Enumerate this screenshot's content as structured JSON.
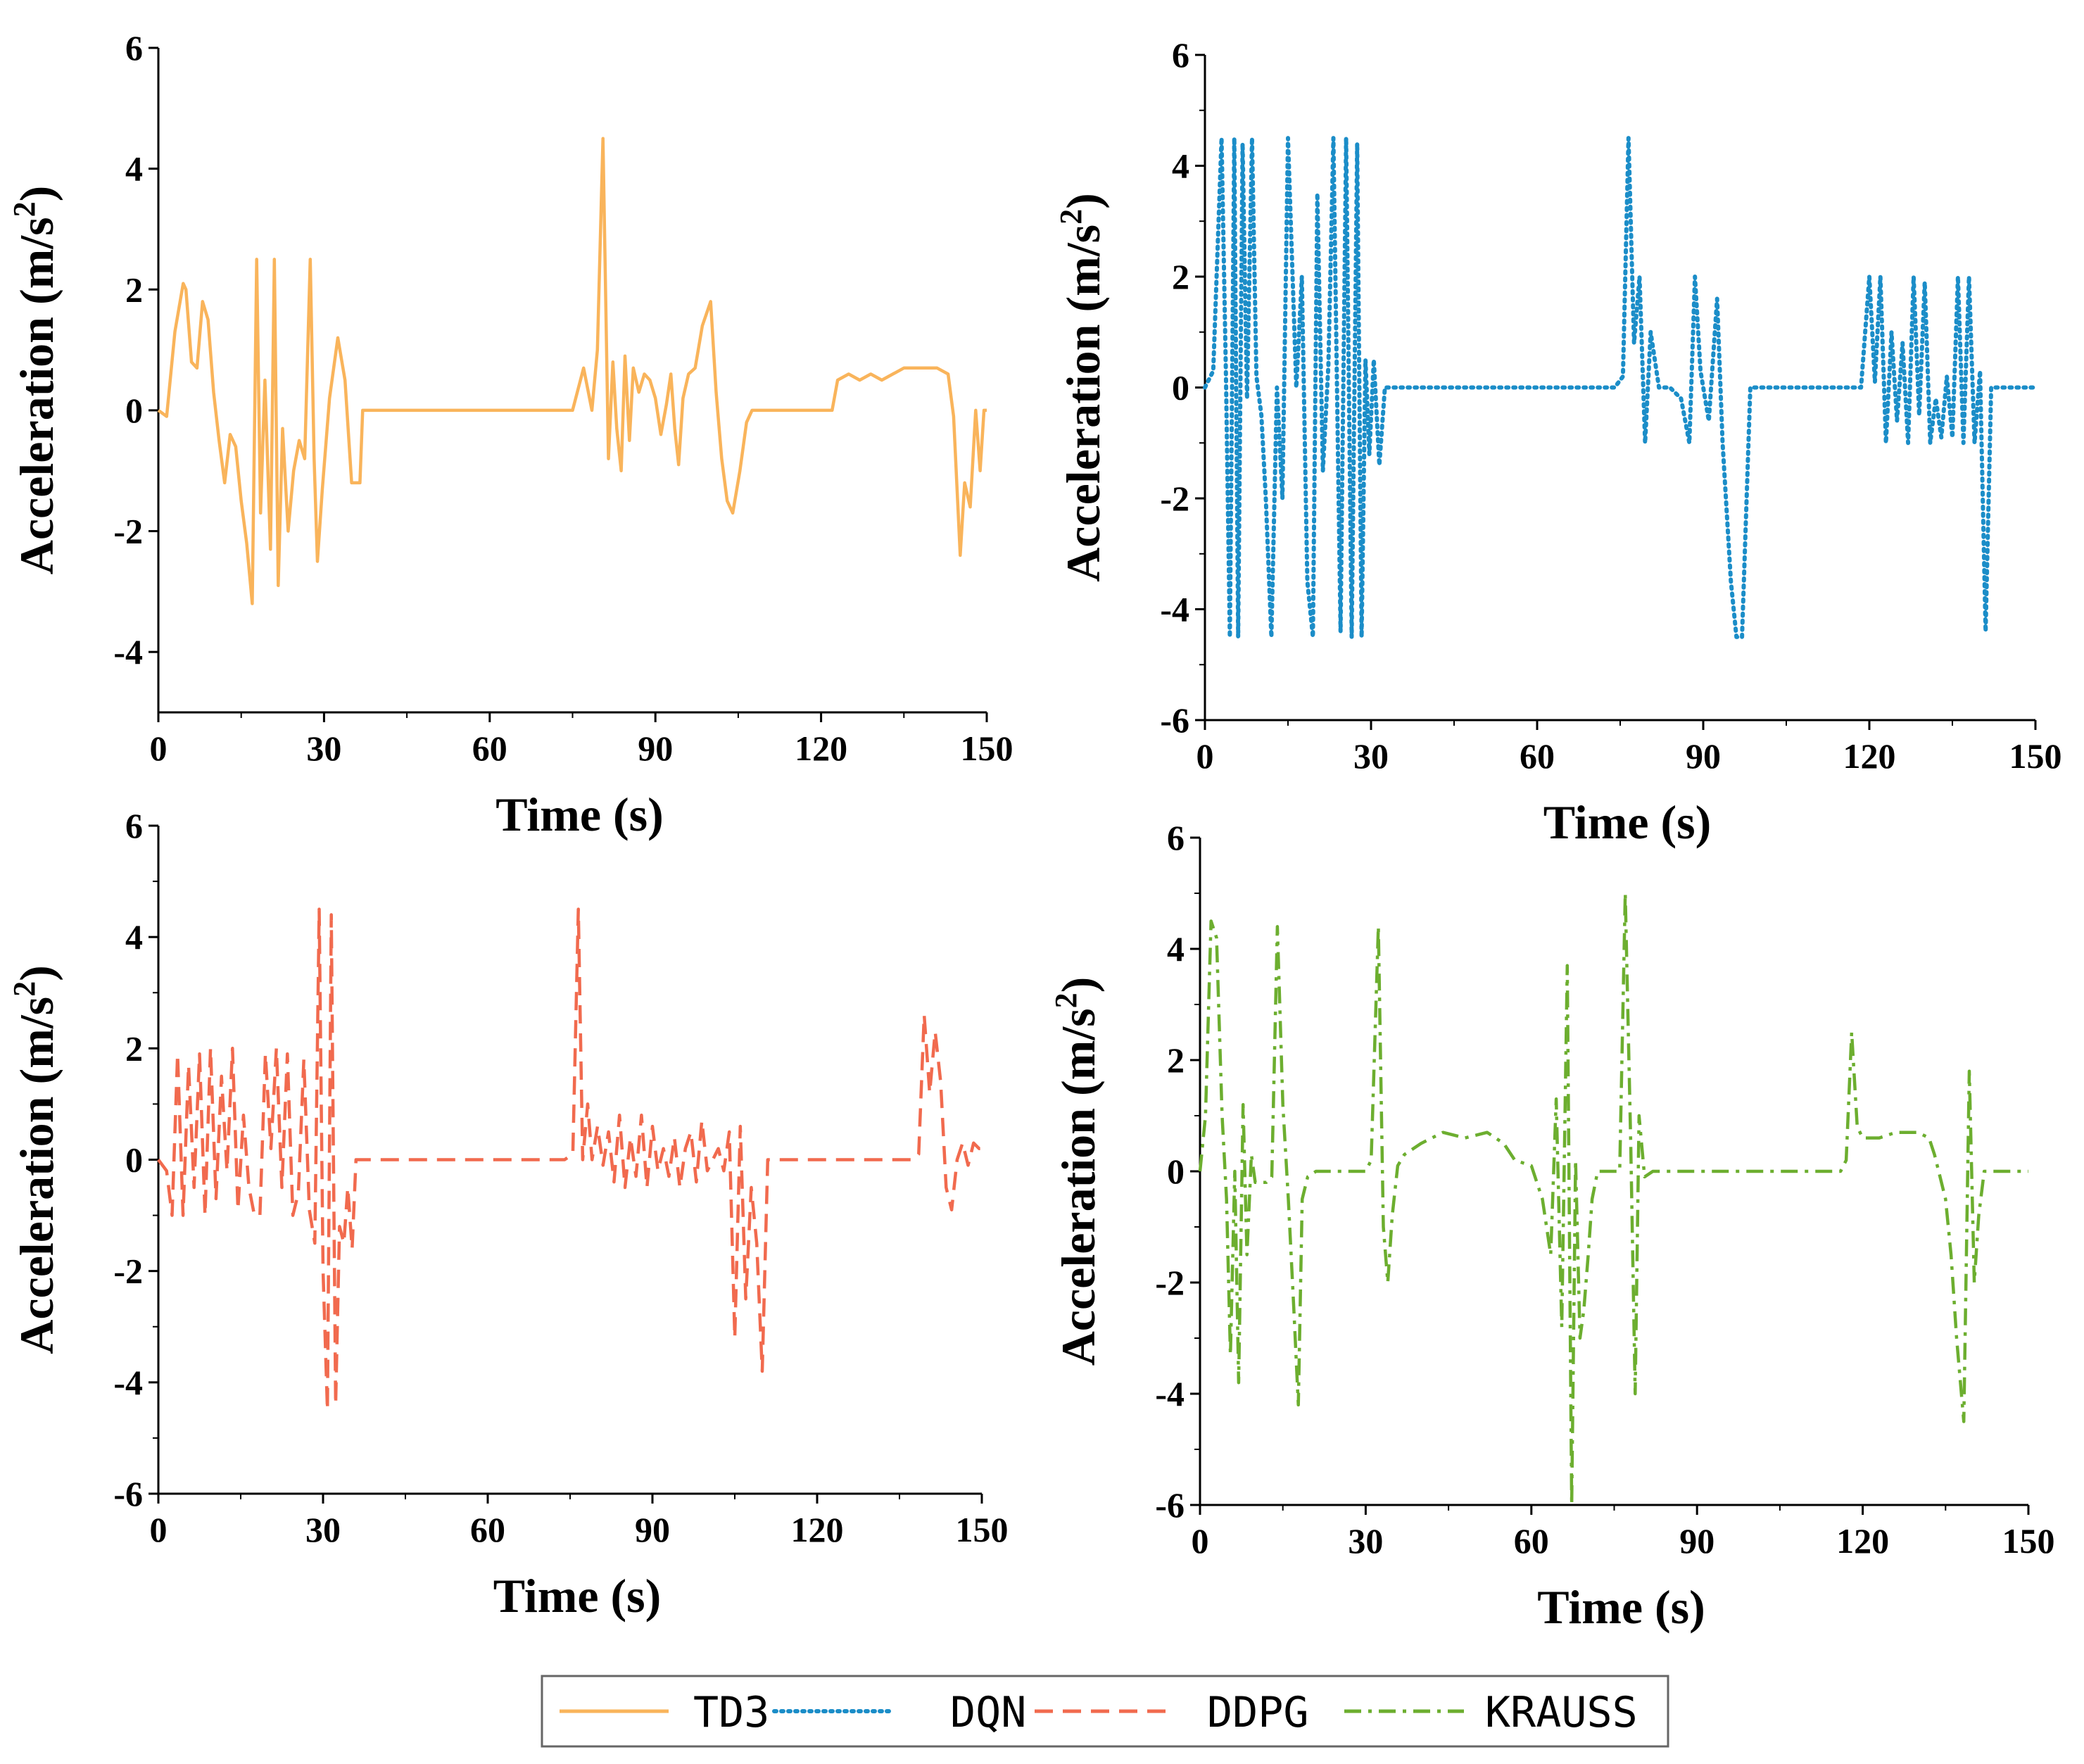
{
  "figure": {
    "xlabel": "Time (s)",
    "ylabel_main": "Acceleration (m/s",
    "ylabel_sup": "2",
    "ylabel_close": ")"
  },
  "colors": {
    "TD3": "#F9B45B",
    "DQN": "#1B8DC8",
    "DDPG": "#F16A4E",
    "KRAUSS": "#6CAE2F"
  },
  "legend": {
    "entries": [
      {
        "name": "TD3",
        "style": "solid"
      },
      {
        "name": "DQN",
        "style": "dotted"
      },
      {
        "name": "DDPG",
        "style": "dashed"
      },
      {
        "name": "KRAUSS",
        "style": "dashdot"
      }
    ]
  },
  "chart_data": [
    {
      "type": "line",
      "panel": "top-left",
      "xlabel": "Time (s)",
      "ylabel": "Acceleration (m/s2)",
      "xlim": [
        0,
        150
      ],
      "ylim": [
        -5,
        6
      ],
      "xticks": [
        0,
        30,
        60,
        90,
        120,
        150
      ],
      "yticks": [
        -4,
        -2,
        0,
        2,
        4,
        6
      ],
      "series": [
        {
          "name": "TD3",
          "style": "solid",
          "x": [
            0,
            1.5,
            3,
            4.5,
            5,
            6,
            7,
            8,
            9,
            10,
            11,
            12,
            13,
            14,
            15,
            16,
            17,
            17.8,
            18.5,
            19.3,
            20.3,
            21,
            21.7,
            22.5,
            23.5,
            24.5,
            25.5,
            26.5,
            27.5,
            28.2,
            28.8,
            29.7,
            31,
            32.5,
            33.8,
            35,
            36.5,
            37,
            75,
            77,
            78.5,
            79.5,
            80.5,
            81.5,
            82.3,
            83,
            83.8,
            84.5,
            85.3,
            86,
            87,
            88,
            89,
            90,
            91,
            92,
            92.8,
            93.5,
            94.2,
            95,
            96,
            97.2,
            98.5,
            100,
            101,
            102,
            103,
            104,
            105.3,
            106.5,
            107.5,
            108.5,
            110,
            122,
            123,
            125,
            127,
            129,
            131,
            133,
            135,
            137,
            139,
            141,
            143,
            144,
            145.2,
            146,
            147,
            148,
            148.8,
            149.5,
            150
          ],
          "y": [
            0,
            -0.1,
            1.3,
            2.1,
            2.0,
            0.8,
            0.7,
            1.8,
            1.5,
            0.3,
            -0.5,
            -1.2,
            -0.4,
            -0.6,
            -1.5,
            -2.2,
            -3.2,
            2.5,
            -1.7,
            0.5,
            -2.3,
            2.5,
            -2.9,
            -0.3,
            -2.0,
            -1.0,
            -0.5,
            -0.8,
            2.5,
            -0.8,
            -2.5,
            -1.3,
            0.2,
            1.2,
            0.5,
            -1.2,
            -1.2,
            0,
            0,
            0.7,
            0,
            1.0,
            4.5,
            -0.8,
            0.8,
            -0.3,
            -1.0,
            0.9,
            -0.5,
            0.7,
            0.3,
            0.6,
            0.5,
            0.2,
            -0.4,
            0.1,
            0.6,
            -0.3,
            -0.9,
            0.2,
            0.6,
            0.7,
            1.4,
            1.8,
            0.3,
            -0.8,
            -1.5,
            -1.7,
            -1.0,
            -0.2,
            0,
            0,
            0,
            0,
            0.5,
            0.6,
            0.5,
            0.6,
            0.5,
            0.6,
            0.7,
            0.7,
            0.7,
            0.7,
            0.6,
            -0.1,
            -2.4,
            -1.2,
            -1.6,
            0.0,
            -1.0,
            0.0,
            0.0
          ]
        }
      ]
    },
    {
      "type": "line",
      "panel": "top-right",
      "xlabel": "Time (s)",
      "ylabel": "Acceleration (m/s2)",
      "xlim": [
        0,
        150
      ],
      "ylim": [
        -6,
        6
      ],
      "xticks": [
        0,
        30,
        60,
        90,
        120,
        150
      ],
      "yticks": [
        -6,
        -4,
        -2,
        0,
        2,
        4,
        6
      ],
      "series": [
        {
          "name": "DQN",
          "style": "dotted",
          "x": [
            0,
            1.5,
            3,
            3.8,
            4.5,
            5.3,
            6,
            6.8,
            7.6,
            8.5,
            9.3,
            10.2,
            11,
            12,
            13,
            14,
            15,
            16.5,
            17.5,
            18.5,
            19.5,
            20.3,
            21.3,
            22.3,
            23.2,
            24.5,
            25.5,
            26.5,
            27.5,
            28.3,
            29,
            29.7,
            30.5,
            31.5,
            32.5,
            33.5,
            74,
            75.5,
            76.5,
            77.5,
            78.5,
            79.5,
            80.5,
            82,
            84,
            86,
            87.5,
            88.5,
            89.5,
            91,
            92.5,
            93.5,
            95,
            96,
            97,
            98.5,
            100,
            117,
            118.5,
            120,
            121,
            122,
            123,
            124,
            125,
            126,
            127,
            128,
            129,
            130,
            131,
            132,
            133,
            134,
            135,
            136,
            137,
            138,
            139,
            140,
            141,
            142,
            143,
            144,
            145,
            150
          ],
          "y": [
            0,
            0.3,
            4.5,
            0.2,
            -4.5,
            4.5,
            -4.5,
            4.4,
            -0.2,
            4.5,
            0.2,
            -0.5,
            -2.0,
            -4.5,
            0.0,
            -2.0,
            4.5,
            0.0,
            2.0,
            -3.5,
            -4.5,
            3.5,
            -1.5,
            0.4,
            4.5,
            -4.4,
            4.5,
            -4.5,
            4.4,
            -4.5,
            0.5,
            -1.2,
            0.5,
            -1.4,
            0,
            0,
            0,
            0.2,
            4.5,
            0.8,
            2.0,
            -1.0,
            1.0,
            0.0,
            0.0,
            -0.2,
            -1.0,
            2.0,
            0.3,
            -0.6,
            1.6,
            -1.0,
            -3.5,
            -4.5,
            -4.5,
            0.0,
            0.0,
            0.0,
            0.0,
            2.0,
            0.1,
            2.0,
            -1.0,
            1.0,
            -0.6,
            0.8,
            -1.0,
            2.0,
            -0.5,
            1.9,
            -1.0,
            -0.2,
            -0.9,
            0.2,
            -0.9,
            2.0,
            -1.0,
            2.0,
            -1.0,
            0.3,
            -4.4,
            0.0,
            0.0,
            0.0,
            0.0,
            0.0
          ]
        }
      ]
    },
    {
      "type": "line",
      "panel": "bottom-left",
      "xlabel": "Time (s)",
      "ylabel": "Acceleration (m/s2)",
      "xlim": [
        0,
        150
      ],
      "ylim": [
        -6,
        6
      ],
      "xticks": [
        0,
        30,
        60,
        90,
        120,
        150
      ],
      "yticks": [
        -6,
        -4,
        -2,
        0,
        2,
        4,
        6
      ],
      "series": [
        {
          "name": "DDPG",
          "style": "dashed",
          "x": [
            0,
            1.5,
            2.5,
            3.5,
            4.5,
            5.5,
            6.5,
            7.5,
            8.5,
            9.5,
            10.5,
            11.5,
            12.5,
            13.5,
            14.5,
            15.5,
            16.5,
            17.5,
            18.5,
            19.5,
            20.5,
            21.5,
            22.5,
            23.5,
            24.5,
            25.5,
            26.5,
            27.5,
            28.5,
            29.3,
            30,
            30.8,
            31.5,
            32.3,
            33,
            33.8,
            34.5,
            35.3,
            36,
            37,
            74,
            75.5,
            76.5,
            77.3,
            78.2,
            79,
            80,
            81,
            82,
            83,
            84,
            85,
            86,
            87,
            88,
            89,
            90,
            91,
            92,
            93,
            94,
            95,
            96,
            97,
            98,
            99,
            100,
            101,
            102,
            103,
            104,
            105,
            106,
            107,
            108,
            109,
            110,
            111,
            136,
            137.5,
            138.5,
            139.5,
            140.5,
            141.5,
            142.5,
            143.5,
            144.5,
            145.5,
            146.5,
            147.5,
            148.5,
            149.5,
            150
          ],
          "y": [
            0,
            -0.2,
            -1.0,
            1.9,
            -1.0,
            1.7,
            -0.5,
            1.9,
            -1.0,
            2.0,
            -0.7,
            1.5,
            -0.2,
            2.0,
            -0.9,
            0.8,
            -0.5,
            -1.0,
            -1.0,
            1.9,
            0.2,
            2.0,
            -0.5,
            1.9,
            -1.0,
            -0.6,
            1.8,
            -0.9,
            -1.5,
            4.5,
            -2.0,
            -4.5,
            4.4,
            -4.4,
            -1.2,
            -1.5,
            -0.5,
            -1.6,
            0,
            0,
            0,
            0.1,
            4.5,
            0.0,
            1.0,
            0.0,
            0.6,
            -0.1,
            0.5,
            -0.4,
            0.8,
            -0.5,
            0.4,
            -0.3,
            0.8,
            -0.5,
            0.6,
            -0.2,
            0.2,
            -0.3,
            0.4,
            -0.5,
            0.2,
            0.5,
            -0.4,
            0.7,
            -0.2,
            0.0,
            0.2,
            -0.2,
            0.5,
            -3.2,
            0.6,
            -2.5,
            -0.5,
            -1.5,
            -3.8,
            0.0,
            0.0,
            0.0,
            0.1,
            2.6,
            1.2,
            2.3,
            1.4,
            -0.5,
            -0.9,
            0.0,
            0.3,
            -0.1,
            0.3,
            0.2,
            0.2
          ]
        }
      ]
    },
    {
      "type": "line",
      "panel": "bottom-right",
      "xlabel": "Time (s)",
      "ylabel": "Acceleration (m/s2)",
      "xlim": [
        0,
        150
      ],
      "ylim": [
        -6,
        6
      ],
      "xticks": [
        0,
        30,
        60,
        90,
        120,
        150
      ],
      "yticks": [
        -6,
        -4,
        -2,
        0,
        2,
        4,
        6
      ],
      "series": [
        {
          "name": "KRAUSS",
          "style": "dashdot",
          "x": [
            0,
            1,
            2,
            3,
            4,
            4.8,
            5.5,
            6.3,
            7,
            7.8,
            8.5,
            9.3,
            10,
            11,
            12,
            13,
            14,
            15,
            16,
            17,
            17.8,
            18.5,
            19.5,
            21,
            30,
            31,
            32.3,
            33.2,
            34,
            34.8,
            35.8,
            37,
            40,
            44,
            48,
            52,
            55,
            57,
            60,
            62,
            63.5,
            64.5,
            65.5,
            66.5,
            67.3,
            68,
            68.8,
            69.5,
            70.3,
            71,
            72,
            73.5,
            76,
            77,
            78,
            78.8,
            79.5,
            80.5,
            82,
            116,
            117,
            118,
            119,
            120,
            123,
            126,
            130,
            132,
            133,
            134,
            135,
            136,
            137,
            138.3,
            139.3,
            140.2,
            141,
            142,
            143,
            144,
            145,
            150
          ],
          "y": [
            0,
            1.0,
            4.5,
            4.2,
            1.0,
            -0.5,
            -3.3,
            0.0,
            -3.8,
            1.2,
            -1.5,
            0.3,
            -0.2,
            -0.2,
            -0.2,
            -0.1,
            4.4,
            1.2,
            -0.5,
            -2.5,
            -4.2,
            -0.5,
            -0.1,
            0,
            0,
            0.2,
            4.4,
            -1.0,
            -2.0,
            -0.8,
            0.1,
            0.3,
            0.5,
            0.7,
            0.6,
            0.7,
            0.5,
            0.2,
            0.1,
            -0.5,
            -1.5,
            1.3,
            -2.8,
            3.7,
            -6.0,
            0.2,
            -3.0,
            -2.5,
            -1.5,
            -0.5,
            0.0,
            0.0,
            0.0,
            5.0,
            0.5,
            -4.0,
            1.0,
            -0.1,
            0.0,
            0.0,
            0.2,
            2.5,
            0.8,
            0.6,
            0.6,
            0.7,
            0.7,
            0.6,
            0.3,
            -0.1,
            -0.5,
            -1.5,
            -3.0,
            -4.5,
            1.8,
            -2.0,
            -0.8,
            0.0,
            0.0,
            0.0,
            0.0,
            0.0
          ]
        }
      ]
    }
  ]
}
